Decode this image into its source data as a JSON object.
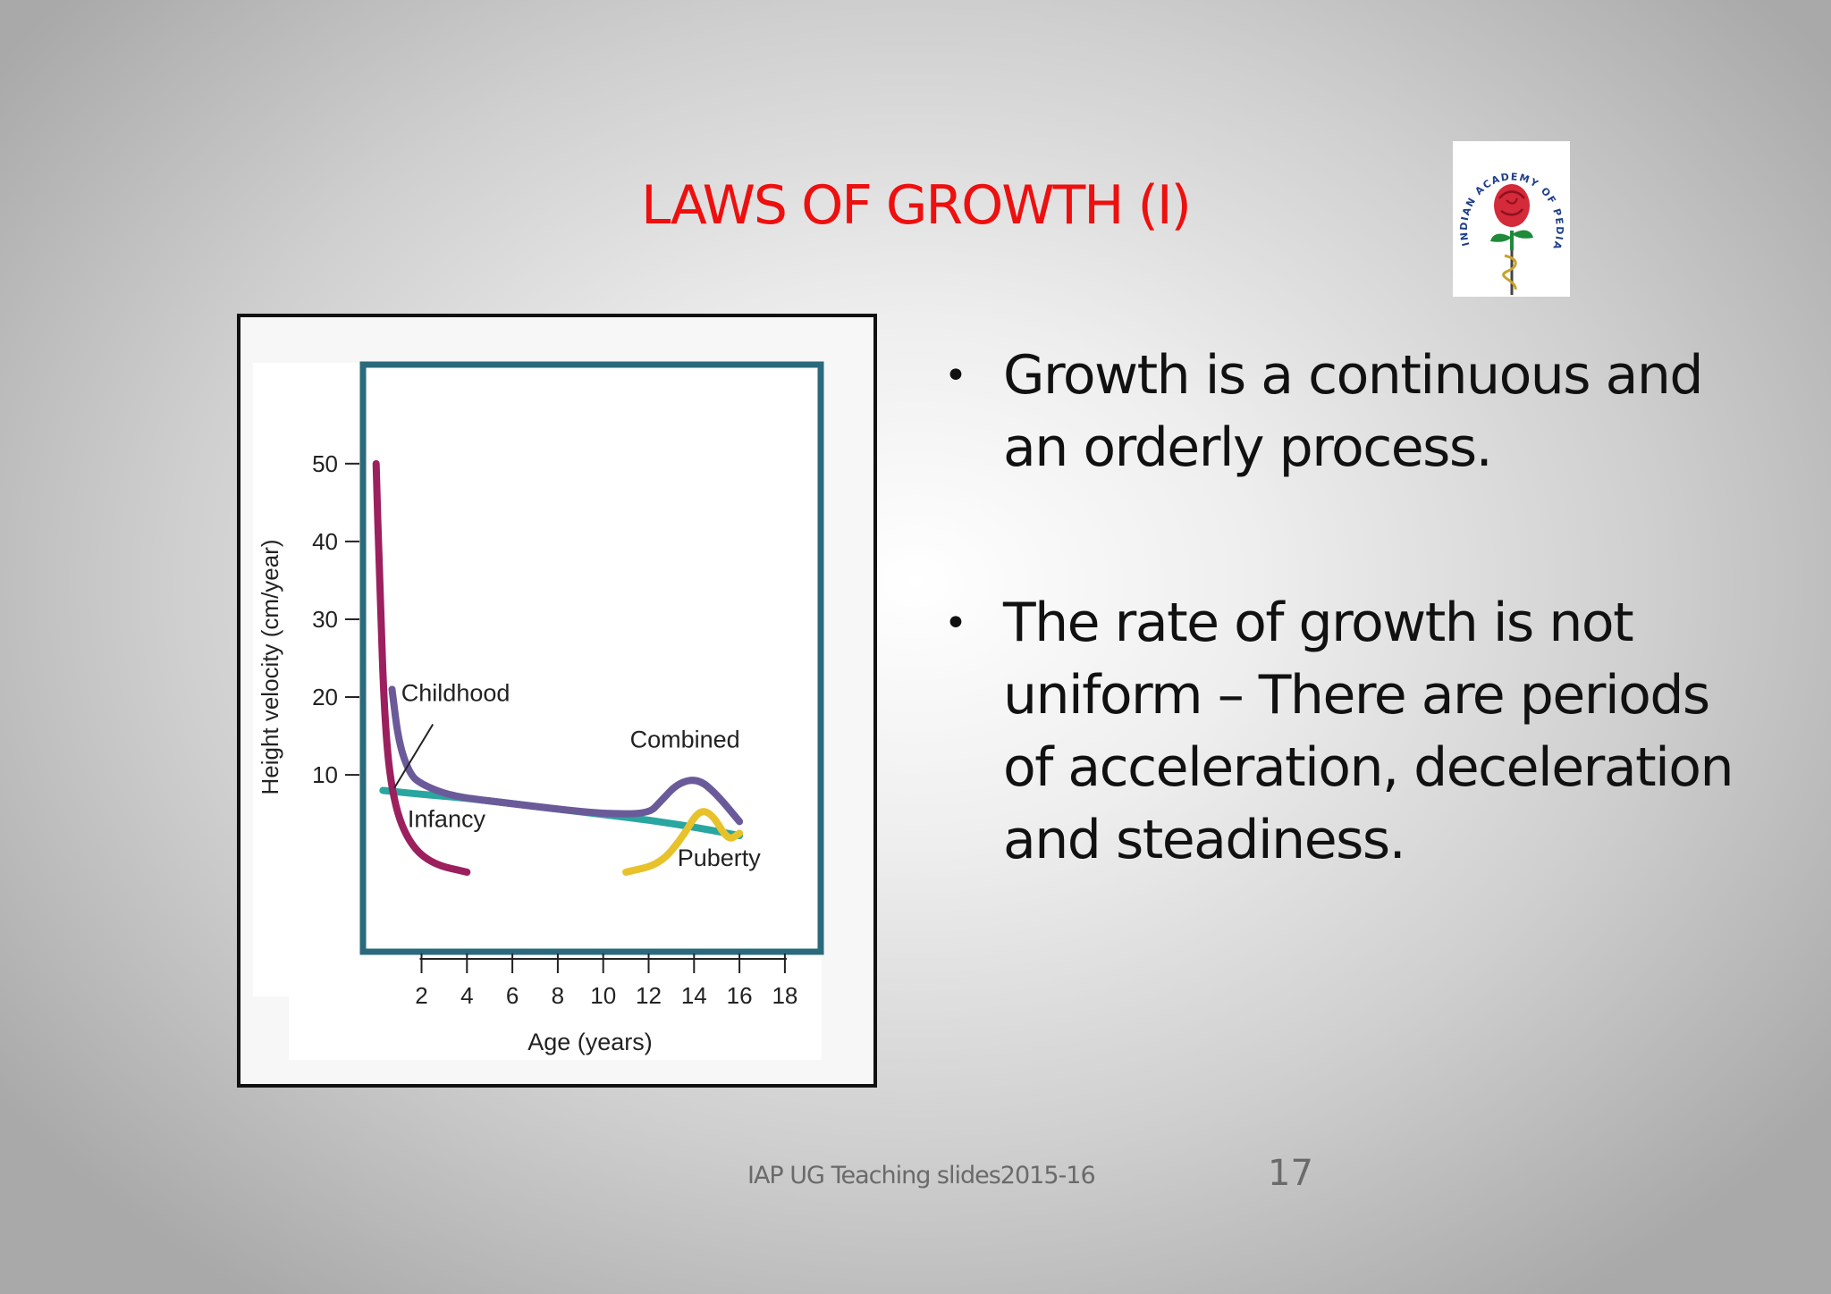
{
  "slide": {
    "title": "LAWS OF GROWTH (I)",
    "footer": "IAP UG Teaching slides2015-16",
    "page_number": "17",
    "title_color": "#ee0f0f"
  },
  "logo": {
    "text": "INDIAN ACADEMY OF PEDIATRICS",
    "icon": "rose-caduceus-icon"
  },
  "bullets": [
    {
      "text": "Growth is a continuous and an orderly process."
    },
    {
      "text": "The rate of growth is not uniform – There are periods of  acceleration, deceleration and steadiness."
    }
  ],
  "chart_data": {
    "type": "line",
    "xlabel": "Age (years)",
    "ylabel": "Height velocity (cm/year)",
    "x_ticks": [
      2,
      4,
      6,
      8,
      10,
      12,
      14,
      16,
      18
    ],
    "y_ticks": [
      10,
      20,
      30,
      40,
      50
    ],
    "xlim": [
      -0.5,
      19.5
    ],
    "ylim": [
      -12.5,
      62.5
    ],
    "series": [
      {
        "name": "Infancy",
        "color": "#9c1f5e",
        "x": [
          0,
          0.15,
          0.4,
          0.8,
          1.5,
          2.5,
          4
        ],
        "y": [
          50,
          35,
          15,
          6,
          1,
          -1.5,
          -2.5
        ]
      },
      {
        "name": "Childhood",
        "color": "#2aa6a0",
        "x": [
          0.3,
          2,
          4,
          6,
          8,
          10,
          12,
          14,
          16
        ],
        "y": [
          8,
          7.5,
          7,
          6.3,
          5.6,
          4.9,
          4.2,
          3.3,
          2.2
        ]
      },
      {
        "name": "Puberty",
        "color": "#e8c22a",
        "x": [
          11,
          12.5,
          13.5,
          14.2,
          14.8,
          15.5,
          16
        ],
        "y": [
          -2.5,
          -1.5,
          2,
          5.5,
          5,
          1.5,
          2.5
        ]
      },
      {
        "name": "Combined",
        "color": "#6b5a99",
        "x": [
          0.7,
          1,
          1.5,
          2,
          3,
          4,
          6,
          8,
          10,
          12,
          12.5,
          13.3,
          14.2,
          15,
          16
        ],
        "y": [
          21,
          14,
          10,
          8.8,
          7.6,
          7,
          6.3,
          5.6,
          5,
          5,
          6.5,
          9,
          9.5,
          7.5,
          4
        ]
      }
    ],
    "annotations": [
      "Childhood",
      "Combined",
      "Infancy",
      "Puberty"
    ],
    "frame_color": "#2a6a7c"
  }
}
